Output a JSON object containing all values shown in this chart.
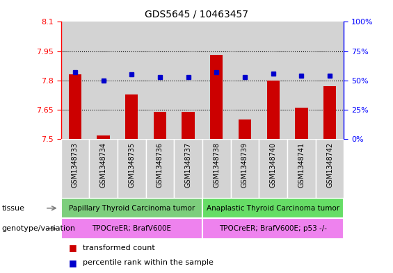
{
  "title": "GDS5645 / 10463457",
  "samples": [
    "GSM1348733",
    "GSM1348734",
    "GSM1348735",
    "GSM1348736",
    "GSM1348737",
    "GSM1348738",
    "GSM1348739",
    "GSM1348740",
    "GSM1348741",
    "GSM1348742"
  ],
  "red_values": [
    7.83,
    7.52,
    7.73,
    7.64,
    7.64,
    7.93,
    7.6,
    7.8,
    7.66,
    7.77
  ],
  "blue_values": [
    57,
    50,
    55,
    53,
    53,
    57,
    53,
    56,
    54,
    54
  ],
  "ylim_left": [
    7.5,
    8.1
  ],
  "ylim_right": [
    0,
    100
  ],
  "yticks_left": [
    7.5,
    7.65,
    7.8,
    7.95,
    8.1
  ],
  "yticks_left_labels": [
    "7.5",
    "7.65",
    "7.8",
    "7.95",
    "8.1"
  ],
  "yticks_right": [
    0,
    25,
    50,
    75,
    100
  ],
  "yticks_right_labels": [
    "0%",
    "25%",
    "50%",
    "75%",
    "100%"
  ],
  "grid_yticks": [
    7.65,
    7.8,
    7.95
  ],
  "tissue_labels": [
    "Papillary Thyroid Carcinoma tumor",
    "Anaplastic Thyroid Carcinoma tumor"
  ],
  "tissue_split": 5,
  "tissue_color_left": "#7dce7d",
  "tissue_color_right": "#66dd66",
  "genotype_labels": [
    "TPOCreER; BrafV600E",
    "TPOCreER; BrafV600E; p53 -/-"
  ],
  "genotype_color": "#ee82ee",
  "bar_color": "#cc0000",
  "dot_color": "#0000cc",
  "cell_bg_color": "#d3d3d3",
  "label_tissue": "tissue",
  "label_genotype": "genotype/variation",
  "legend_red": "transformed count",
  "legend_blue": "percentile rank within the sample"
}
